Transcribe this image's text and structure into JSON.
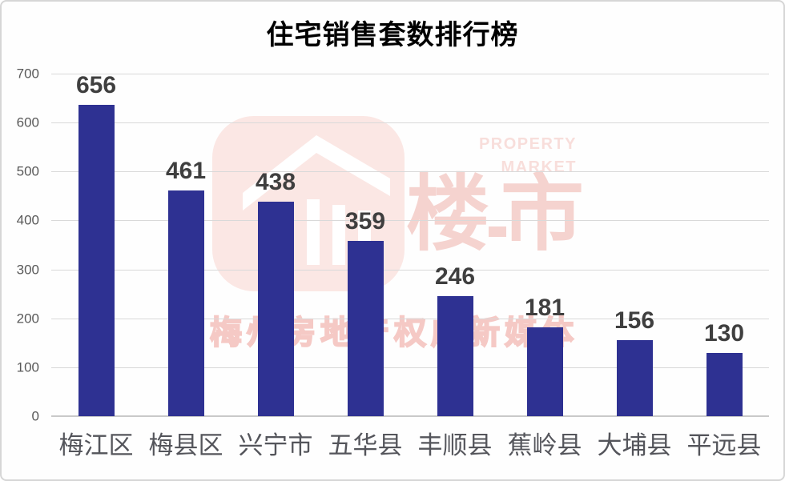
{
  "title": "住宅销售套数排行榜",
  "chart_data": {
    "type": "bar",
    "title": "住宅销售套数排行榜",
    "categories": [
      "梅江区",
      "梅县区",
      "兴宁市",
      "五华县",
      "丰顺县",
      "蕉岭县",
      "大埔县",
      "平远县"
    ],
    "values": [
      656,
      461,
      438,
      359,
      246,
      181,
      156,
      130
    ],
    "xlabel": "",
    "ylabel": "",
    "ylim": [
      0,
      700
    ],
    "yticks": [
      0,
      100,
      200,
      300,
      400,
      500,
      600,
      700
    ],
    "grid": true,
    "legend_position": "none",
    "bar_color": "#2E3192"
  },
  "watermark": {
    "icon": "house-icon",
    "logo_text_cn": "楼市",
    "brand_line1": "PROPERTY",
    "brand_line2": "MARKET",
    "tagline": "梅州房地产权威新媒体"
  },
  "colors": {
    "bar": "#2E3192",
    "gridline": "#D9D9D9",
    "axis_line": "#C9C9C9",
    "value_label": "#3F3F3F",
    "y_tick_label": "#595959",
    "category_label": "#54555B",
    "watermark_icon_bg": "#FBE7E4",
    "watermark_pink": "#F5D3CF",
    "watermark_en_text": "#F8DEDB",
    "watermark_tagline_stroke": "#F5C9C5"
  }
}
